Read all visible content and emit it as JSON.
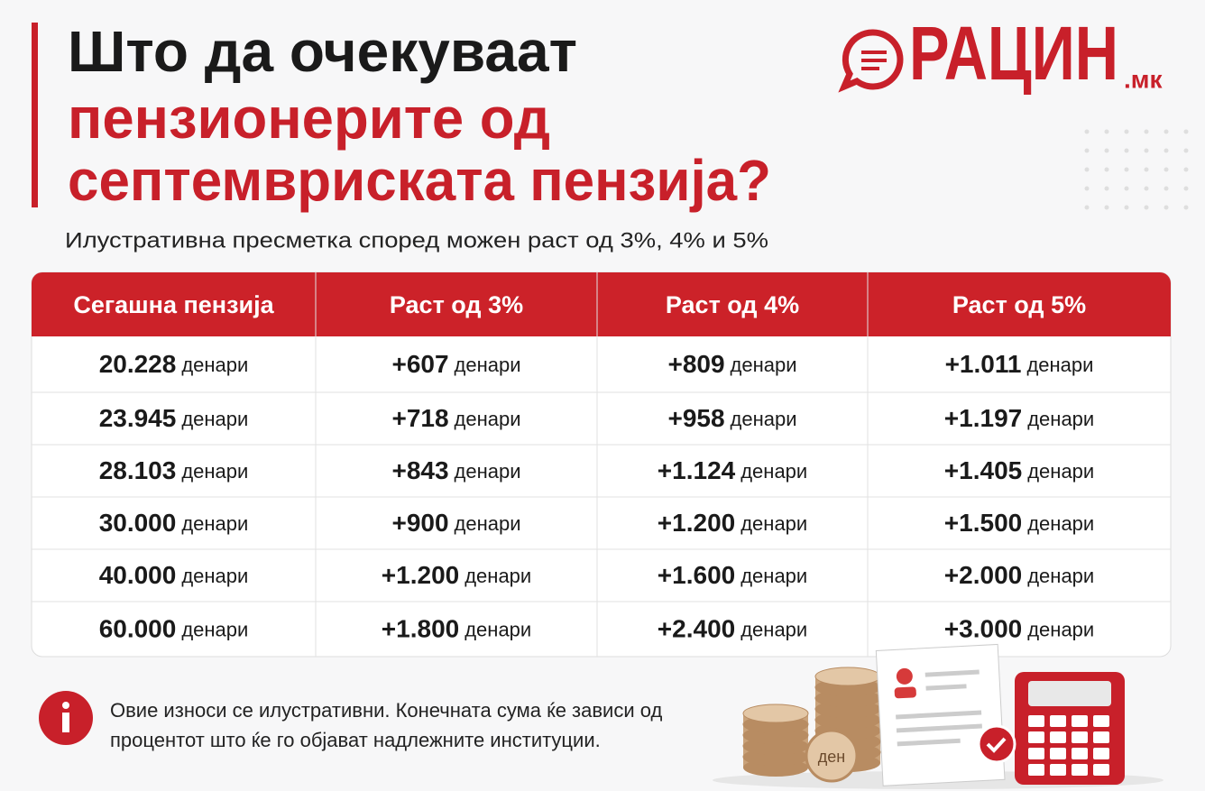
{
  "header": {
    "title_lines": [
      "Што да очекуваат",
      "пензионерите од",
      "септемвриската пензија?"
    ],
    "subtitle": "Илустративна пресметка според можен раст од 3%, 4% и 5%",
    "logo": {
      "name": "РАЦИН",
      "domain": ".мк"
    }
  },
  "table": {
    "columns": [
      "Сегашна пензија",
      "Раст од 3%",
      "Раст од 4%",
      "Раст од 5%"
    ],
    "rows": [
      [
        {
          "amount": "20.228",
          "unit": "денари"
        },
        {
          "amount": "+607",
          "unit": "денари"
        },
        {
          "amount": "+809",
          "unit": "денари"
        },
        {
          "amount": "+1.011",
          "unit": "денари"
        }
      ],
      [
        {
          "amount": "23.945",
          "unit": "денари"
        },
        {
          "amount": "+718",
          "unit": "денари"
        },
        {
          "amount": "+958",
          "unit": "денари"
        },
        {
          "amount": "+1.197",
          "unit": "денари"
        }
      ],
      [
        {
          "amount": "28.103",
          "unit": "денари"
        },
        {
          "amount": "+843",
          "unit": "денари"
        },
        {
          "amount": "+1.124",
          "unit": "денари"
        },
        {
          "amount": "+1.405",
          "unit": "денари"
        }
      ],
      [
        {
          "amount": "30.000",
          "unit": "денари"
        },
        {
          "amount": "+900",
          "unit": "денари"
        },
        {
          "amount": "+1.200",
          "unit": "денари"
        },
        {
          "amount": "+1.500",
          "unit": "денари"
        }
      ],
      [
        {
          "amount": "40.000",
          "unit": "денари"
        },
        {
          "amount": "+1.200",
          "unit": "денари"
        },
        {
          "amount": "+1.600",
          "unit": "денари"
        },
        {
          "amount": "+2.000",
          "unit": "денари"
        }
      ],
      [
        {
          "amount": "60.000",
          "unit": "денари"
        },
        {
          "amount": "+1.800",
          "unit": "денари"
        },
        {
          "amount": "+2.400",
          "unit": "денари"
        },
        {
          "amount": "+3.000",
          "unit": "денари"
        }
      ]
    ]
  },
  "note": {
    "lines": [
      "Овие износи се илустративни. Конечната сума ќе зависи од",
      "процентот што ќе го објават надлежните институции."
    ]
  },
  "illustration": {
    "coin_label": "ден"
  }
}
